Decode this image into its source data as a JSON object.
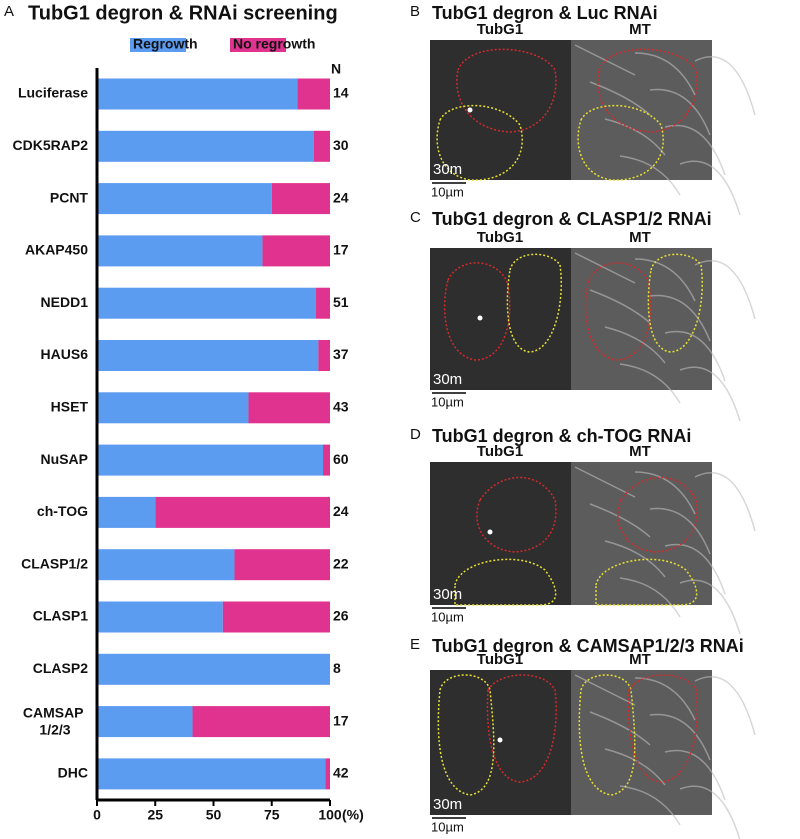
{
  "chart_data": {
    "type": "bar",
    "orientation": "horizontal",
    "stacked": true,
    "panel_label": "A",
    "title": "TubG1 degron & RNAi screening",
    "categories": [
      "Luciferase",
      "CDK5RAP2",
      "PCNT",
      "AKAP450",
      "NEDD1",
      "HAUS6",
      "HSET",
      "NuSAP",
      "ch-TOG",
      "CLASP1/2",
      "CLASP1",
      "CLASP2",
      "CAMSAP 1/2/3",
      "DHC"
    ],
    "series": [
      {
        "name": "Regrowth",
        "color": "#5b9bf0",
        "values": [
          86,
          93,
          75,
          71,
          94,
          95,
          65,
          97,
          25,
          59,
          54,
          100,
          41,
          98
        ]
      },
      {
        "name": "No regrowth",
        "color": "#e0338f",
        "values": [
          14,
          7,
          25,
          29,
          6,
          5,
          35,
          3,
          75,
          41,
          46,
          0,
          59,
          2
        ]
      }
    ],
    "n_label": "N",
    "n": [
      14,
      30,
      24,
      17,
      51,
      37,
      43,
      60,
      24,
      22,
      26,
      8,
      17,
      42
    ],
    "xlim": [
      0,
      100
    ],
    "xticks": [
      0,
      25,
      50,
      75,
      100
    ],
    "x_unit": "(%)",
    "legend": "top"
  },
  "panels": [
    {
      "label": "B",
      "title": "TubG1 degron & Luc RNAi",
      "columns": [
        "TubG1",
        "MT"
      ],
      "time": "30m",
      "scale": "10µm"
    },
    {
      "label": "C",
      "title": "TubG1 degron & CLASP1/2 RNAi",
      "columns": [
        "TubG1",
        "MT"
      ],
      "time": "30m",
      "scale": "10µm"
    },
    {
      "label": "D",
      "title": "TubG1 degron & ch-TOG RNAi",
      "columns": [
        "TubG1",
        "MT"
      ],
      "time": "30m",
      "scale": "10µm"
    },
    {
      "label": "E",
      "title": "TubG1 degron & CAMSAP1/2/3 RNAi",
      "columns": [
        "TubG1",
        "MT"
      ],
      "time": "30m",
      "scale": "10µm"
    }
  ]
}
